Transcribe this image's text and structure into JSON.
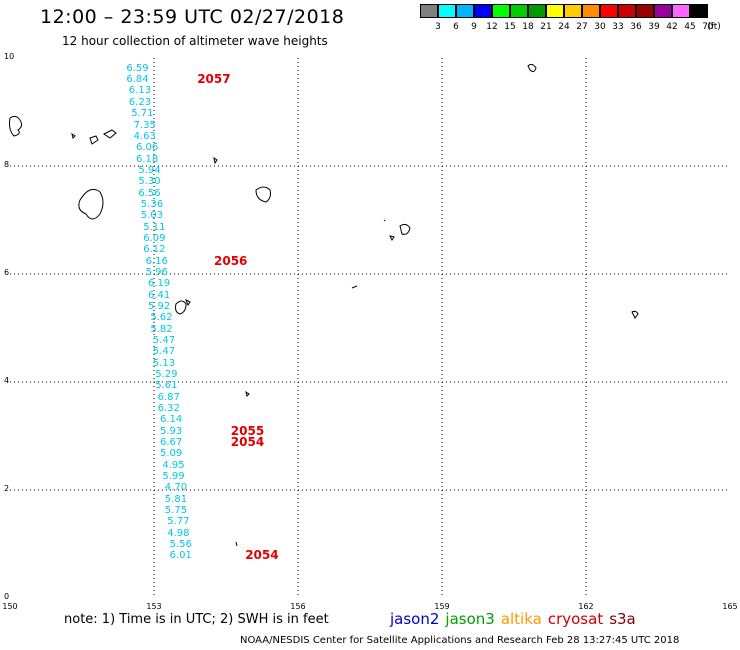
{
  "header": {
    "title": "12:00 – 23:59 UTC 02/27/2018",
    "subtitle": "12 hour collection of altimeter wave heights"
  },
  "colorbar": {
    "unit": "(ft)",
    "swatches": [
      {
        "label": "3",
        "color": "#808080"
      },
      {
        "label": "6",
        "color": "#00ffff"
      },
      {
        "label": "9",
        "color": "#00b4ff"
      },
      {
        "label": "12",
        "color": "#0000ff"
      },
      {
        "label": "15",
        "color": "#00ff00"
      },
      {
        "label": "18",
        "color": "#00cc00"
      },
      {
        "label": "21",
        "color": "#009900"
      },
      {
        "label": "24",
        "color": "#ffff00"
      },
      {
        "label": "27",
        "color": "#ffcc00"
      },
      {
        "label": "30",
        "color": "#ff8c00"
      },
      {
        "label": "33",
        "color": "#ff0000"
      },
      {
        "label": "36",
        "color": "#cc0000"
      },
      {
        "label": "39",
        "color": "#990000"
      },
      {
        "label": "42",
        "color": "#990099"
      },
      {
        "label": "45",
        "color": "#ff66ff"
      },
      {
        "label": "70",
        "color": "#000000"
      }
    ]
  },
  "axes": {
    "x_ticks": [
      "150",
      "153",
      "156",
      "159",
      "162",
      "165"
    ],
    "y_ticks": [
      "0",
      "2",
      "4",
      "6",
      "8",
      "10"
    ],
    "lon_range": [
      150,
      165
    ],
    "lat_range": [
      0,
      10
    ],
    "grid": true
  },
  "track_color": "#00c8e6",
  "measurements": [
    {
      "value": "6.59",
      "lon": 153.05,
      "lat": 9.8
    },
    {
      "value": "6.84",
      "lon": 153.05,
      "lat": 9.59
    },
    {
      "value": "6.13",
      "lon": 153.1,
      "lat": 9.38
    },
    {
      "value": "6.23",
      "lon": 153.1,
      "lat": 9.17
    },
    {
      "value": "5.71",
      "lon": 153.15,
      "lat": 8.96
    },
    {
      "value": "7.35",
      "lon": 153.2,
      "lat": 8.75
    },
    {
      "value": "4.63",
      "lon": 153.2,
      "lat": 8.54
    },
    {
      "value": "6.06",
      "lon": 153.25,
      "lat": 8.33
    },
    {
      "value": "6.18",
      "lon": 153.25,
      "lat": 8.12
    },
    {
      "value": "5.94",
      "lon": 153.3,
      "lat": 7.91
    },
    {
      "value": "5.30",
      "lon": 153.3,
      "lat": 7.7
    },
    {
      "value": "6.56",
      "lon": 153.3,
      "lat": 7.49
    },
    {
      "value": "5.36",
      "lon": 153.35,
      "lat": 7.28
    },
    {
      "value": "5.03",
      "lon": 153.35,
      "lat": 7.07
    },
    {
      "value": "5.11",
      "lon": 153.4,
      "lat": 6.86
    },
    {
      "value": "6.09",
      "lon": 153.4,
      "lat": 6.65
    },
    {
      "value": "6.12",
      "lon": 153.4,
      "lat": 6.44
    },
    {
      "value": "6.16",
      "lon": 153.45,
      "lat": 6.23
    },
    {
      "value": "5.96",
      "lon": 153.45,
      "lat": 6.02
    },
    {
      "value": "6.19",
      "lon": 153.5,
      "lat": 5.81
    },
    {
      "value": "6.41",
      "lon": 153.5,
      "lat": 5.6
    },
    {
      "value": "5.92",
      "lon": 153.5,
      "lat": 5.39
    },
    {
      "value": "5.62",
      "lon": 153.55,
      "lat": 5.18
    },
    {
      "value": "5.82",
      "lon": 153.55,
      "lat": 4.97
    },
    {
      "value": "5.47",
      "lon": 153.6,
      "lat": 4.76
    },
    {
      "value": "5.47",
      "lon": 153.6,
      "lat": 4.55
    },
    {
      "value": "5.13",
      "lon": 153.6,
      "lat": 4.34
    },
    {
      "value": "5.29",
      "lon": 153.65,
      "lat": 4.13
    },
    {
      "value": "5.61",
      "lon": 153.65,
      "lat": 3.92
    },
    {
      "value": "6.87",
      "lon": 153.7,
      "lat": 3.71
    },
    {
      "value": "6.32",
      "lon": 153.7,
      "lat": 3.5
    },
    {
      "value": "6.14",
      "lon": 153.75,
      "lat": 3.29
    },
    {
      "value": "5.93",
      "lon": 153.75,
      "lat": 3.08
    },
    {
      "value": "6.67",
      "lon": 153.75,
      "lat": 2.87
    },
    {
      "value": "5.09",
      "lon": 153.75,
      "lat": 2.66
    },
    {
      "value": "4.95",
      "lon": 153.8,
      "lat": 2.45
    },
    {
      "value": "5.99",
      "lon": 153.8,
      "lat": 2.24
    },
    {
      "value": "4.70",
      "lon": 153.85,
      "lat": 2.03
    },
    {
      "value": "5.81",
      "lon": 153.85,
      "lat": 1.82
    },
    {
      "value": "5.75",
      "lon": 153.85,
      "lat": 1.61
    },
    {
      "value": "5.77",
      "lon": 153.9,
      "lat": 1.4
    },
    {
      "value": "4.98",
      "lon": 153.9,
      "lat": 1.19
    },
    {
      "value": "5.56",
      "lon": 153.95,
      "lat": 0.98
    },
    {
      "value": "6.01",
      "lon": 153.95,
      "lat": 0.77
    }
  ],
  "passes": [
    {
      "label": "2057",
      "lon": 153.9,
      "lat": 9.61
    },
    {
      "label": "2056",
      "lon": 154.25,
      "lat": 6.25
    },
    {
      "label": "2055",
      "lon": 154.6,
      "lat": 3.1
    },
    {
      "label": "2054",
      "lon": 154.6,
      "lat": 2.88
    },
    {
      "label": "2054",
      "lon": 154.9,
      "lat": 0.79
    }
  ],
  "note": "note:  1) Time is in UTC;  2) SWH is in feet",
  "legend": [
    {
      "label": "jason2",
      "color": "#0000cc"
    },
    {
      "label": "jason3",
      "color": "#00a000"
    },
    {
      "label": "altika",
      "color": "#ff9900"
    },
    {
      "label": "cryosat",
      "color": "#cc0000"
    },
    {
      "label": "s3a",
      "color": "#800000"
    }
  ],
  "credit": "NOAA/NESDIS Center for Satellite Applications and Research    Feb 28 13:27:45 UTC 2018"
}
